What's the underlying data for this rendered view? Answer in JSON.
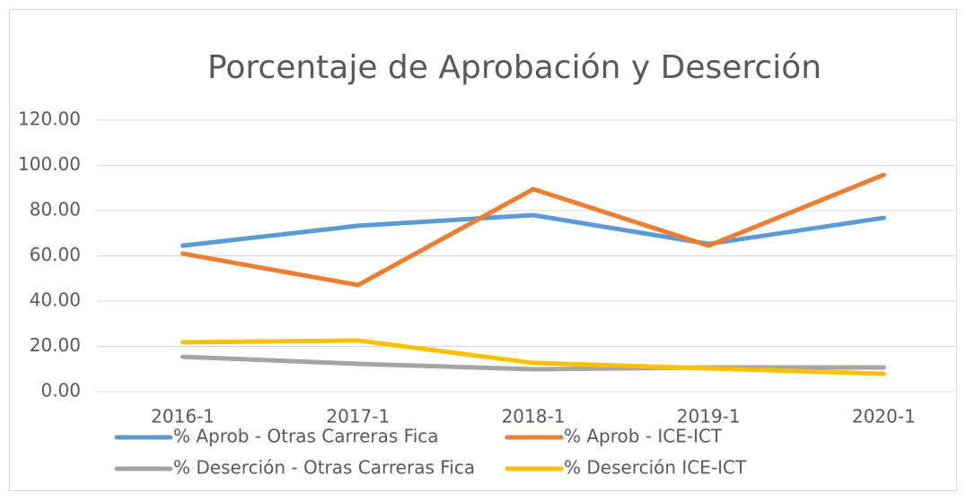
{
  "chart_data": {
    "type": "line",
    "title": "Porcentaje de Aprobación y Deserción",
    "categories": [
      "2016-1",
      "2017-1",
      "2018-1",
      "2019-1",
      "2020-1"
    ],
    "series": [
      {
        "name": "% Aprob - Otras Carreras Fica",
        "color": "#5b9bd5",
        "values": [
          64.5,
          73.3,
          78.0,
          65.3,
          76.8
        ]
      },
      {
        "name": "% Aprob - ICE-ICT",
        "color": "#ed7d31",
        "values": [
          61.0,
          47.1,
          89.5,
          64.5,
          95.8
        ]
      },
      {
        "name": "% Deserción - Otras Carreras Fica",
        "color": "#a5a5a5",
        "values": [
          15.4,
          12.3,
          9.9,
          10.7,
          10.7
        ]
      },
      {
        "name": "% Deserción ICE-ICT",
        "color": "#ffc000",
        "values": [
          21.8,
          22.6,
          12.7,
          10.3,
          7.9
        ]
      }
    ],
    "ylim": [
      0,
      120
    ],
    "yticks": [
      {
        "value": 0,
        "label": "0.00"
      },
      {
        "value": 20,
        "label": "20.00"
      },
      {
        "value": 40,
        "label": "40.00"
      },
      {
        "value": 60,
        "label": "60.00"
      },
      {
        "value": 80,
        "label": "80.00"
      },
      {
        "value": 100,
        "label": "100.00"
      },
      {
        "value": 120,
        "label": "120.00"
      }
    ],
    "grid": true,
    "legend": "bottom"
  }
}
